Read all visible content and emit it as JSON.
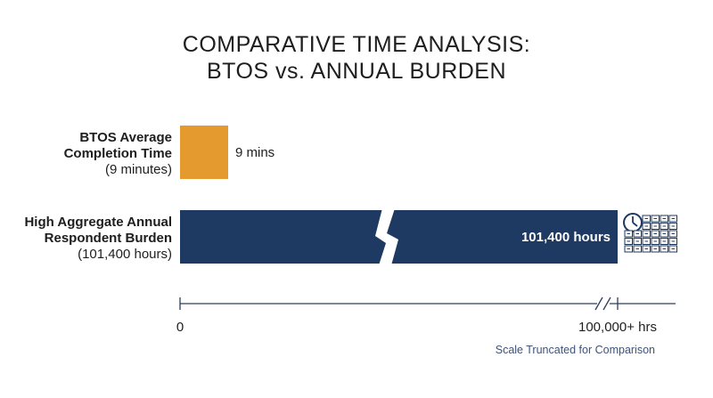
{
  "chart_data": {
    "type": "bar",
    "orientation": "horizontal",
    "title_lines": [
      "COMPARATIVE TIME ANALYSIS:",
      "BTOS vs. ANNUAL BURDEN"
    ],
    "series": [
      {
        "label_bold_lines": [
          "BTOS Average",
          "Completion Time"
        ],
        "label_sub": "(9 minutes)",
        "value_label": "9 mins",
        "value_minutes": 9,
        "display_fraction": 0.11,
        "color": "#e49a2e"
      },
      {
        "label_bold_lines": [
          "High Aggregate Annual",
          "Respondent Burden"
        ],
        "label_sub": "(101,400 hours)",
        "value_label": "101,400 hours",
        "value_hours": 101400,
        "display_fraction": 1.0,
        "axis_break": true,
        "color": "#1f3a62"
      }
    ],
    "axis": {
      "tick_labels": [
        "0",
        "100,000+ hrs"
      ],
      "axis_break": true
    },
    "note": "Scale Truncated for Comparison",
    "icons": [
      "clock-icon",
      "file-boxes-icon"
    ],
    "colors": {
      "accent": "#e49a2e",
      "navy": "#1f3a62",
      "note": "#3d5379",
      "axis": "#2d3e5c"
    }
  }
}
